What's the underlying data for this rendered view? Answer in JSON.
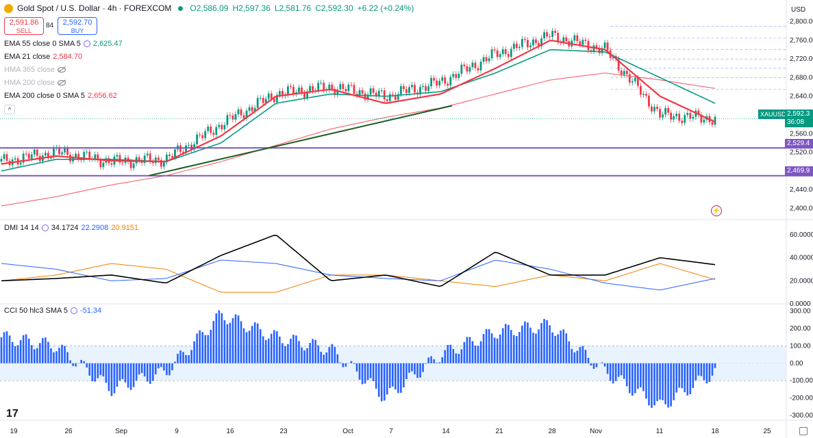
{
  "header": {
    "symbol": "Gold Spot / U.S. Dollar · 4h · FOREXCOM",
    "open": "O2,586.09",
    "high": "H2,597.36",
    "low": "L2,581.76",
    "close": "C2,592.30",
    "change": "+6.22 (+0.24%)"
  },
  "trade": {
    "sell_price": "2,591.86",
    "sell_label": "SELL",
    "spread": "84",
    "buy_price": "2,592.70",
    "buy_label": "BUY"
  },
  "indicators": {
    "ema55_name": "EMA 55 close 0 SMA 5",
    "ema55_value": "2,625.47",
    "ema21_name": "EMA 21 close",
    "ema21_value": "2,584.70",
    "hma365_name": "HMA 365 close",
    "hma200_name": "HMA 200 close",
    "ema200_name": "EMA 200 close 0 SMA 5",
    "ema200_value": "2,656.62",
    "dmi_name": "DMI 14 14",
    "dmi_adx": "34.1724",
    "dmi_plus": "22.2908",
    "dmi_minus": "20.9151",
    "cci_name": "CCI 50 hlc3 SMA 5",
    "cci_value": "-51.34"
  },
  "price_axis": {
    "currency": "USD",
    "ticks": [
      "2,800.00",
      "2,760.00",
      "2,720.00",
      "2,680.00",
      "2,640.00",
      "2,600.00",
      "2,560.00",
      "2,520.00",
      "2,480.00",
      "2,440.00",
      "2,400.00"
    ],
    "symbol_tag": "XAUUSD",
    "last_price": "2,592.3",
    "countdown": "36:08",
    "level1": "2,529.4",
    "level2": "2,469.9"
  },
  "dmi_axis": {
    "ticks": [
      "60.0000",
      "40.0000",
      "20.0000",
      "0.0000"
    ]
  },
  "cci_axis": {
    "ticks": [
      "300.00",
      "200.00",
      "100.00",
      "0.00",
      "-100.00",
      "-200.00",
      "-300.00"
    ]
  },
  "time_axis": {
    "ticks": [
      "19",
      "26",
      "Sep",
      "9",
      "16",
      "23",
      "Oct",
      "7",
      "14",
      "21",
      "28",
      "Nov",
      "11",
      "18",
      "25"
    ]
  },
  "colors": {
    "ema21": "#f23645",
    "ema55": "#089981",
    "ema200": "#f7525f",
    "level": "#7e57c2",
    "trendline": "#1b5e20",
    "up": "#089981",
    "down": "#f23645",
    "dmi_adx": "#000000",
    "dmi_plus": "#2962ff",
    "dmi_minus": "#f57c00",
    "cci": "#2962ff"
  },
  "chart_data": [
    {
      "type": "line",
      "pane": "price",
      "x": [
        "19",
        "26",
        "Sep",
        "9",
        "16",
        "23",
        "Oct",
        "7",
        "14",
        "21",
        "28",
        "Nov",
        "11",
        "18"
      ],
      "series": [
        {
          "name": "close",
          "values": [
            2500,
            2520,
            2500,
            2505,
            2580,
            2645,
            2660,
            2640,
            2670,
            2730,
            2770,
            2740,
            2600,
            2592
          ]
        },
        {
          "name": "EMA 21",
          "values": [
            2495,
            2512,
            2502,
            2500,
            2555,
            2640,
            2655,
            2625,
            2645,
            2700,
            2760,
            2740,
            2640,
            2585
          ]
        },
        {
          "name": "EMA 55",
          "values": [
            2480,
            2505,
            2505,
            2500,
            2540,
            2625,
            2645,
            2640,
            2650,
            2690,
            2740,
            2735,
            2680,
            2625
          ]
        },
        {
          "name": "EMA 200",
          "values": [
            2405,
            2425,
            2450,
            2470,
            2500,
            2535,
            2570,
            2595,
            2615,
            2645,
            2675,
            2690,
            2675,
            2657
          ]
        }
      ],
      "levels": [
        2529.4,
        2469.9
      ],
      "ylim": [
        2380,
        2820
      ]
    },
    {
      "type": "line",
      "pane": "DMI 14 14",
      "x": [
        "19",
        "26",
        "Sep",
        "9",
        "16",
        "23",
        "Oct",
        "7",
        "14",
        "21",
        "28",
        "Nov",
        "11",
        "18"
      ],
      "series": [
        {
          "name": "ADX",
          "values": [
            20,
            22,
            25,
            18,
            42,
            60,
            20,
            25,
            15,
            45,
            25,
            25,
            40,
            34
          ]
        },
        {
          "name": "+DI",
          "values": [
            35,
            30,
            20,
            22,
            38,
            35,
            25,
            22,
            20,
            38,
            30,
            18,
            12,
            22
          ]
        },
        {
          "name": "-DI",
          "values": [
            20,
            25,
            35,
            30,
            10,
            10,
            25,
            25,
            20,
            15,
            25,
            20,
            35,
            21
          ]
        }
      ],
      "ylim": [
        0,
        70
      ]
    },
    {
      "type": "bar",
      "pane": "CCI 50 hlc3 SMA 5",
      "x": [
        "19",
        "26",
        "Sep",
        "9",
        "16",
        "23",
        "Oct",
        "7",
        "14",
        "21",
        "28",
        "Nov",
        "11",
        "18"
      ],
      "values": [
        150,
        100,
        -150,
        -50,
        280,
        150,
        80,
        -200,
        50,
        180,
        220,
        -50,
        -250,
        -51
      ],
      "ylim": [
        -320,
        330
      ]
    }
  ]
}
